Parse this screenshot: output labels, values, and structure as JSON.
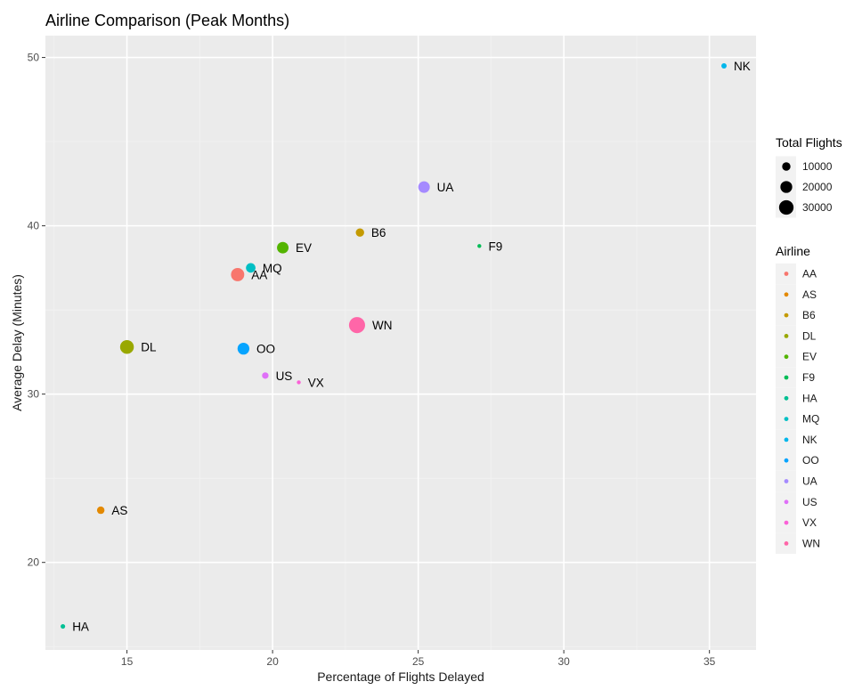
{
  "chart_data": {
    "type": "scatter",
    "title": "Airline Comparison (Peak Months)",
    "xlabel": "Percentage of Flights Delayed",
    "ylabel": "Average Delay (Minutes)",
    "xlim": [
      12.2,
      36.6
    ],
    "ylim": [
      14.8,
      51.3
    ],
    "x_ticks": [
      15,
      20,
      25,
      30,
      35
    ],
    "y_ticks": [
      20,
      30,
      40,
      50
    ],
    "grid": true,
    "legend_position": "right",
    "size_legend": {
      "title": "Total Flights",
      "entries": [
        10000,
        20000,
        30000
      ]
    },
    "color_legend": {
      "title": "Airline"
    },
    "series": [
      {
        "name": "AA",
        "x": 18.8,
        "y": 37.1,
        "total_flights": 25000,
        "color": "#F8766D"
      },
      {
        "name": "AS",
        "x": 14.1,
        "y": 23.1,
        "total_flights": 8000,
        "color": "#E38900"
      },
      {
        "name": "B6",
        "x": 23.0,
        "y": 39.6,
        "total_flights": 10000,
        "color": "#C49A00"
      },
      {
        "name": "DL",
        "x": 15.0,
        "y": 32.8,
        "total_flights": 27000,
        "color": "#99A800"
      },
      {
        "name": "EV",
        "x": 20.35,
        "y": 38.7,
        "total_flights": 19000,
        "color": "#53B400"
      },
      {
        "name": "F9",
        "x": 27.1,
        "y": 38.8,
        "total_flights": 2000,
        "color": "#00BC56"
      },
      {
        "name": "HA",
        "x": 12.8,
        "y": 16.2,
        "total_flights": 3000,
        "color": "#00C094"
      },
      {
        "name": "MQ",
        "x": 19.25,
        "y": 37.5,
        "total_flights": 13000,
        "color": "#00BFC4"
      },
      {
        "name": "NK",
        "x": 35.5,
        "y": 49.5,
        "total_flights": 4000,
        "color": "#00B6EB"
      },
      {
        "name": "OO",
        "x": 19.0,
        "y": 32.7,
        "total_flights": 20000,
        "color": "#06A4FF"
      },
      {
        "name": "UA",
        "x": 25.2,
        "y": 42.3,
        "total_flights": 19000,
        "color": "#A58AFF"
      },
      {
        "name": "US",
        "x": 19.75,
        "y": 31.1,
        "total_flights": 6000,
        "color": "#DF70F8"
      },
      {
        "name": "VX",
        "x": 20.9,
        "y": 30.7,
        "total_flights": 1500,
        "color": "#FB61D7"
      },
      {
        "name": "WN",
        "x": 22.9,
        "y": 34.1,
        "total_flights": 37000,
        "color": "#FF66A8"
      }
    ]
  }
}
